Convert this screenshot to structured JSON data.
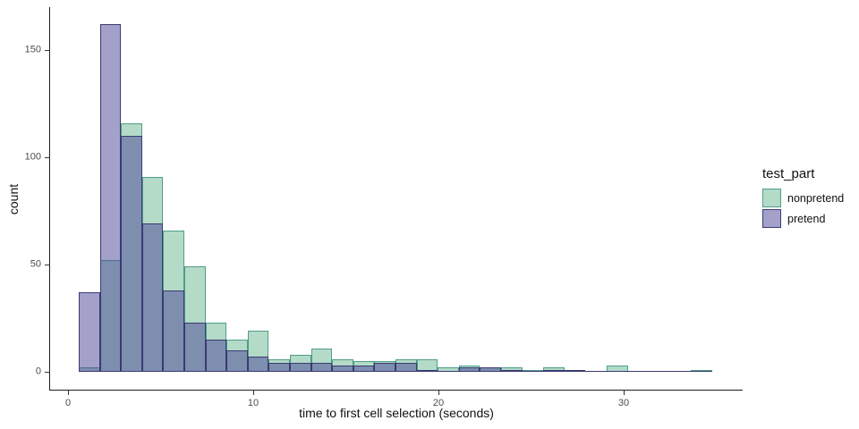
{
  "chart_data": {
    "type": "histogram-overlaid-bar",
    "title": "",
    "xlabel": "time to first cell selection (seconds)",
    "ylabel": "count",
    "legend_title": "test_part",
    "legend_position": "right",
    "grid": false,
    "bins": {
      "start_seconds": 0.58,
      "width_seconds": 1.14,
      "count": 30
    },
    "x_ticks": [
      0,
      10,
      20,
      30
    ],
    "y_ticks": [
      0,
      50,
      100,
      150
    ],
    "xlim": [
      -0.7,
      36.5
    ],
    "ylim": [
      -8.5,
      170.5
    ],
    "series": [
      {
        "name": "nonpretend",
        "fill_rgba": "rgba(103,183,145,0.5)",
        "fill_flat_hex": "#b3dbc8",
        "border_hex": "#4e9e88",
        "counts": [
          2,
          52,
          116,
          91,
          66,
          49,
          23,
          15,
          19,
          6,
          8,
          11,
          6,
          5,
          5,
          6,
          6,
          2,
          3,
          2,
          2,
          1,
          2,
          0,
          0,
          3,
          0,
          0,
          0,
          1
        ]
      },
      {
        "name": "pretend",
        "fill_rgba": "rgba(71,65,149,0.5)",
        "fill_flat_hex": "#a3a0ca",
        "border_hex": "#3a3a73",
        "counts": [
          37,
          162,
          110,
          69,
          38,
          23,
          15,
          10,
          7,
          4,
          4,
          4,
          3,
          3,
          4,
          4,
          1,
          0,
          2,
          2,
          1,
          0,
          1,
          1,
          0,
          0,
          0,
          0,
          0,
          0
        ]
      }
    ],
    "overlap_flat_hex": "#7d8eae",
    "axis_text_color": "#4d4d4d"
  }
}
